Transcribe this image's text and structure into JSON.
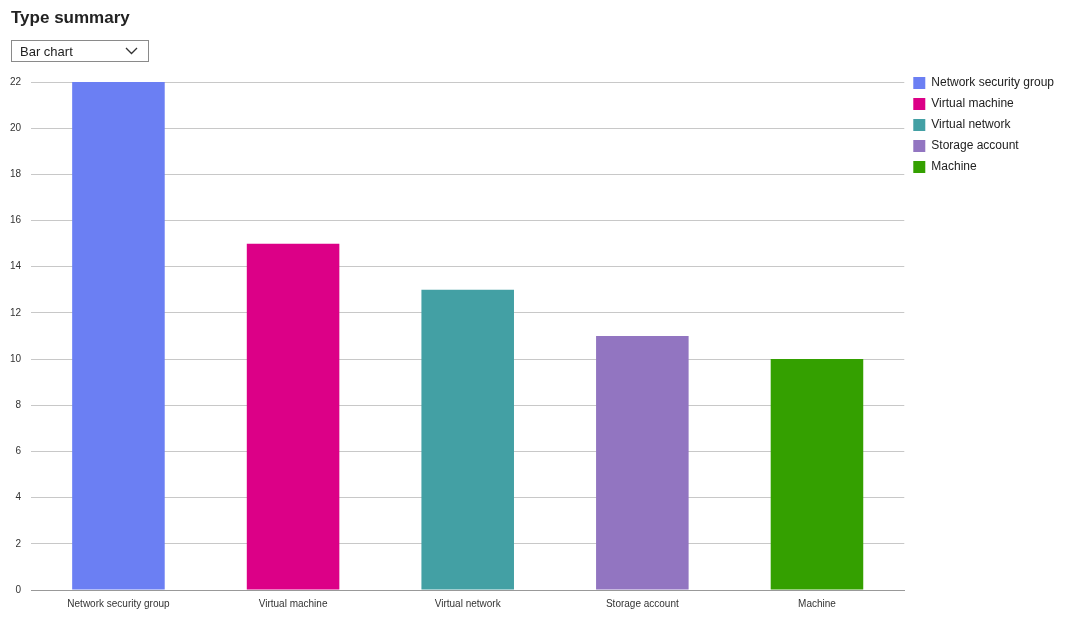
{
  "chart_data": {
    "type": "bar",
    "title": "Type summary",
    "annotations": [
      "Bar chart"
    ],
    "categories": [
      "Network security group",
      "Virtual machine",
      "Virtual network",
      "Storage account",
      "Machine"
    ],
    "stacked": true,
    "series": [
      {
        "name": "Network security group",
        "color": "#6b7ff3",
        "values": [
          22,
          null,
          null,
          null,
          null
        ]
      },
      {
        "name": "Virtual machine",
        "color": "#dc0087",
        "values": [
          null,
          15,
          null,
          null,
          null
        ]
      },
      {
        "name": "Virtual network",
        "color": "#43a0a4",
        "values": [
          null,
          null,
          13,
          null,
          null
        ]
      },
      {
        "name": "Storage account",
        "color": "#9275c1",
        "values": [
          null,
          null,
          null,
          11,
          null
        ]
      },
      {
        "name": "Machine",
        "color": "#34a000",
        "values": [
          null,
          null,
          null,
          null,
          10
        ]
      }
    ],
    "ylim": [
      0,
      22
    ],
    "yticks": [
      0,
      2,
      4,
      6,
      8,
      10,
      12,
      14,
      16,
      18,
      20,
      22
    ],
    "grid": "y",
    "legend": "top right"
  }
}
